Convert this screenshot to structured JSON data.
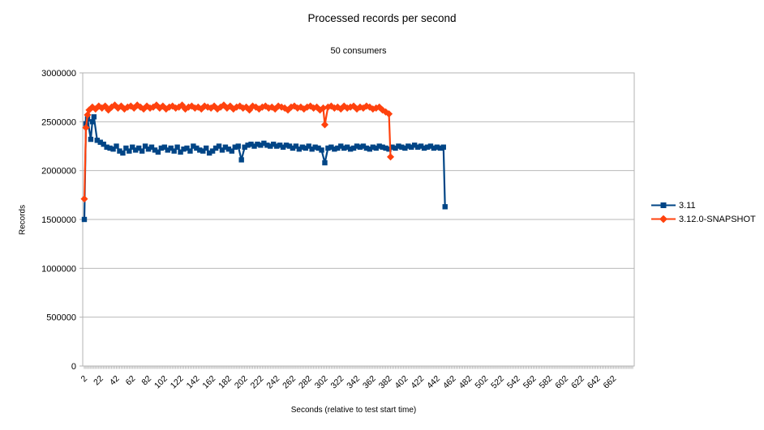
{
  "chart_data": {
    "type": "line",
    "title": "Processed records per second",
    "subtitle": "50 consumers",
    "xlabel": "Seconds  (relative to test start time)",
    "ylabel": "Records",
    "xlim": [
      0,
      688
    ],
    "ylim": [
      0,
      3000000
    ],
    "yticks": [
      0,
      500000,
      1000000,
      1500000,
      2000000,
      2500000,
      3000000
    ],
    "xticks": [
      2,
      22,
      42,
      62,
      82,
      102,
      122,
      142,
      162,
      182,
      202,
      222,
      242,
      262,
      282,
      302,
      322,
      342,
      362,
      382,
      402,
      422,
      442,
      462,
      482,
      502,
      522,
      542,
      562,
      582,
      602,
      622,
      642,
      662
    ],
    "minor_tick_step": 2,
    "grid": "horizontal-only",
    "legend_position": "right",
    "axis_color": "#b3b3b3",
    "grid_color": "#b9b9b9",
    "text_color": "#000000",
    "series": [
      {
        "name": "3.11",
        "color": "#004586",
        "marker": "square",
        "points": [
          [
            2,
            1500000
          ],
          [
            4,
            2480000
          ],
          [
            6,
            2530000
          ],
          [
            10,
            2320000
          ],
          [
            12,
            2500000
          ],
          [
            14,
            2550000
          ],
          [
            18,
            2310000
          ],
          [
            22,
            2290000
          ],
          [
            26,
            2270000
          ],
          [
            30,
            2240000
          ],
          [
            34,
            2230000
          ],
          [
            38,
            2220000
          ],
          [
            42,
            2250000
          ],
          [
            46,
            2200000
          ],
          [
            50,
            2180000
          ],
          [
            54,
            2230000
          ],
          [
            58,
            2200000
          ],
          [
            62,
            2240000
          ],
          [
            66,
            2210000
          ],
          [
            70,
            2230000
          ],
          [
            74,
            2200000
          ],
          [
            78,
            2250000
          ],
          [
            82,
            2220000
          ],
          [
            86,
            2240000
          ],
          [
            90,
            2210000
          ],
          [
            94,
            2190000
          ],
          [
            98,
            2230000
          ],
          [
            102,
            2240000
          ],
          [
            106,
            2210000
          ],
          [
            110,
            2230000
          ],
          [
            114,
            2200000
          ],
          [
            118,
            2240000
          ],
          [
            122,
            2190000
          ],
          [
            126,
            2220000
          ],
          [
            130,
            2230000
          ],
          [
            134,
            2200000
          ],
          [
            138,
            2250000
          ],
          [
            142,
            2230000
          ],
          [
            146,
            2210000
          ],
          [
            150,
            2200000
          ],
          [
            154,
            2230000
          ],
          [
            158,
            2180000
          ],
          [
            162,
            2200000
          ],
          [
            166,
            2230000
          ],
          [
            170,
            2250000
          ],
          [
            174,
            2210000
          ],
          [
            178,
            2240000
          ],
          [
            182,
            2220000
          ],
          [
            186,
            2200000
          ],
          [
            190,
            2240000
          ],
          [
            194,
            2250000
          ],
          [
            198,
            2110000
          ],
          [
            202,
            2240000
          ],
          [
            206,
            2260000
          ],
          [
            210,
            2270000
          ],
          [
            214,
            2250000
          ],
          [
            218,
            2270000
          ],
          [
            222,
            2260000
          ],
          [
            226,
            2280000
          ],
          [
            230,
            2260000
          ],
          [
            234,
            2250000
          ],
          [
            238,
            2270000
          ],
          [
            242,
            2250000
          ],
          [
            246,
            2260000
          ],
          [
            250,
            2240000
          ],
          [
            254,
            2260000
          ],
          [
            258,
            2250000
          ],
          [
            262,
            2230000
          ],
          [
            266,
            2250000
          ],
          [
            270,
            2220000
          ],
          [
            274,
            2240000
          ],
          [
            278,
            2230000
          ],
          [
            282,
            2250000
          ],
          [
            286,
            2220000
          ],
          [
            290,
            2240000
          ],
          [
            294,
            2230000
          ],
          [
            298,
            2210000
          ],
          [
            302,
            2080000
          ],
          [
            306,
            2230000
          ],
          [
            310,
            2240000
          ],
          [
            314,
            2220000
          ],
          [
            318,
            2230000
          ],
          [
            322,
            2250000
          ],
          [
            326,
            2230000
          ],
          [
            330,
            2240000
          ],
          [
            334,
            2220000
          ],
          [
            338,
            2230000
          ],
          [
            342,
            2250000
          ],
          [
            346,
            2240000
          ],
          [
            350,
            2250000
          ],
          [
            354,
            2230000
          ],
          [
            358,
            2220000
          ],
          [
            362,
            2240000
          ],
          [
            366,
            2230000
          ],
          [
            370,
            2250000
          ],
          [
            374,
            2240000
          ],
          [
            378,
            2230000
          ],
          [
            382,
            2220000
          ],
          [
            386,
            2240000
          ],
          [
            390,
            2230000
          ],
          [
            394,
            2250000
          ],
          [
            398,
            2240000
          ],
          [
            402,
            2230000
          ],
          [
            406,
            2250000
          ],
          [
            410,
            2240000
          ],
          [
            414,
            2260000
          ],
          [
            418,
            2240000
          ],
          [
            422,
            2250000
          ],
          [
            426,
            2230000
          ],
          [
            430,
            2240000
          ],
          [
            434,
            2250000
          ],
          [
            438,
            2230000
          ],
          [
            442,
            2240000
          ],
          [
            446,
            2230000
          ],
          [
            450,
            2240000
          ],
          [
            452,
            1630000
          ]
        ]
      },
      {
        "name": "3.12.0-SNAPSHOT",
        "color": "#ff420e",
        "marker": "diamond",
        "points": [
          [
            2,
            1710000
          ],
          [
            4,
            2440000
          ],
          [
            6,
            2570000
          ],
          [
            8,
            2620000
          ],
          [
            12,
            2650000
          ],
          [
            16,
            2630000
          ],
          [
            20,
            2660000
          ],
          [
            24,
            2640000
          ],
          [
            28,
            2660000
          ],
          [
            32,
            2620000
          ],
          [
            36,
            2650000
          ],
          [
            40,
            2670000
          ],
          [
            44,
            2640000
          ],
          [
            48,
            2660000
          ],
          [
            52,
            2630000
          ],
          [
            56,
            2650000
          ],
          [
            60,
            2660000
          ],
          [
            64,
            2640000
          ],
          [
            68,
            2670000
          ],
          [
            72,
            2650000
          ],
          [
            76,
            2630000
          ],
          [
            80,
            2660000
          ],
          [
            84,
            2640000
          ],
          [
            88,
            2650000
          ],
          [
            92,
            2670000
          ],
          [
            96,
            2640000
          ],
          [
            100,
            2660000
          ],
          [
            104,
            2630000
          ],
          [
            108,
            2650000
          ],
          [
            112,
            2660000
          ],
          [
            116,
            2640000
          ],
          [
            120,
            2650000
          ],
          [
            124,
            2670000
          ],
          [
            128,
            2630000
          ],
          [
            132,
            2650000
          ],
          [
            136,
            2660000
          ],
          [
            140,
            2640000
          ],
          [
            144,
            2650000
          ],
          [
            148,
            2630000
          ],
          [
            152,
            2660000
          ],
          [
            156,
            2650000
          ],
          [
            160,
            2640000
          ],
          [
            164,
            2660000
          ],
          [
            168,
            2630000
          ],
          [
            172,
            2650000
          ],
          [
            176,
            2670000
          ],
          [
            180,
            2640000
          ],
          [
            184,
            2660000
          ],
          [
            188,
            2630000
          ],
          [
            192,
            2650000
          ],
          [
            196,
            2660000
          ],
          [
            200,
            2640000
          ],
          [
            204,
            2650000
          ],
          [
            208,
            2620000
          ],
          [
            212,
            2660000
          ],
          [
            216,
            2650000
          ],
          [
            220,
            2630000
          ],
          [
            224,
            2650000
          ],
          [
            228,
            2660000
          ],
          [
            232,
            2640000
          ],
          [
            236,
            2650000
          ],
          [
            240,
            2630000
          ],
          [
            244,
            2660000
          ],
          [
            248,
            2650000
          ],
          [
            252,
            2640000
          ],
          [
            256,
            2620000
          ],
          [
            260,
            2650000
          ],
          [
            264,
            2660000
          ],
          [
            268,
            2640000
          ],
          [
            272,
            2650000
          ],
          [
            276,
            2630000
          ],
          [
            280,
            2650000
          ],
          [
            284,
            2660000
          ],
          [
            288,
            2640000
          ],
          [
            292,
            2650000
          ],
          [
            296,
            2620000
          ],
          [
            300,
            2640000
          ],
          [
            302,
            2470000
          ],
          [
            306,
            2650000
          ],
          [
            310,
            2660000
          ],
          [
            314,
            2640000
          ],
          [
            318,
            2650000
          ],
          [
            322,
            2630000
          ],
          [
            326,
            2660000
          ],
          [
            330,
            2640000
          ],
          [
            334,
            2650000
          ],
          [
            338,
            2660000
          ],
          [
            342,
            2630000
          ],
          [
            346,
            2650000
          ],
          [
            350,
            2640000
          ],
          [
            354,
            2660000
          ],
          [
            358,
            2650000
          ],
          [
            362,
            2630000
          ],
          [
            366,
            2640000
          ],
          [
            370,
            2650000
          ],
          [
            374,
            2620000
          ],
          [
            378,
            2600000
          ],
          [
            382,
            2580000
          ],
          [
            384,
            2140000
          ]
        ]
      }
    ]
  }
}
